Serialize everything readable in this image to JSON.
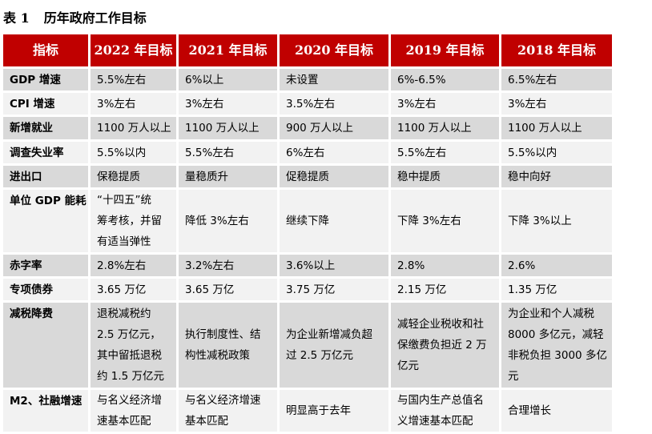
{
  "title": {
    "number": "表 1",
    "text": "历年政府工作目标"
  },
  "table": {
    "headers": [
      "指标",
      "2022 年目标",
      "2021 年目标",
      "2020 年目标",
      "2019 年目标",
      "2018 年目标"
    ],
    "rows": [
      [
        "GDP 增速",
        "5.5%左右",
        "6%以上",
        "未设置",
        "6%-6.5%",
        "6.5%左右"
      ],
      [
        "CPI 增速",
        "3%左右",
        "3%左右",
        "3.5%左右",
        "3%左右",
        "3%左右"
      ],
      [
        "新增就业",
        "1100 万人以上",
        "1100 万人以上",
        "900 万人以上",
        "1100 万人以上",
        "1100 万人以上"
      ],
      [
        "调查失业率",
        "5.5%以内",
        "5.5%左右",
        "6%左右",
        "5.5%左右",
        "5.5%以内"
      ],
      [
        "进出口",
        "保稳提质",
        "量稳质升",
        "促稳提质",
        "稳中提质",
        "稳中向好"
      ],
      [
        "单位 GDP 能耗",
        "“十四五”统\n筹考核，并留\n有适当弹性",
        "降低 3%左右",
        "继续下降",
        "下降 3%左右",
        "下降 3%以上"
      ],
      [
        "赤字率",
        "2.8%左右",
        "3.2%左右",
        "3.6%以上",
        "2.8%",
        "2.6%"
      ],
      [
        "专项债券",
        "3.65 万亿",
        "3.65 万亿",
        "3.75 万亿",
        "2.15 万亿",
        "1.35 万亿"
      ],
      [
        "减税降费",
        "退税减税约\n2.5 万亿元，\n其中留抵退税\n约 1.5 万亿元",
        "执行制度性、结\n构性减税政策",
        "为企业新增减负超\n过 2.5 万亿元",
        "减轻企业税收和社\n保缴费负担近 2 万\n亿元",
        "为企业和个人减税\n8000 多亿元，减轻\n非税负担 3000 多亿\n元"
      ],
      [
        "M2、社融增速",
        "与名义经济增\n速基本匹配",
        "与名义经济增速\n基本匹配",
        "明显高于去年",
        "与国内生产总值名\n义增速基本匹配",
        "合理增长"
      ]
    ]
  },
  "colors": {
    "header_bg": "#c00000",
    "row_dark": "#d9d9d9",
    "row_light": "#f2f2f2"
  }
}
